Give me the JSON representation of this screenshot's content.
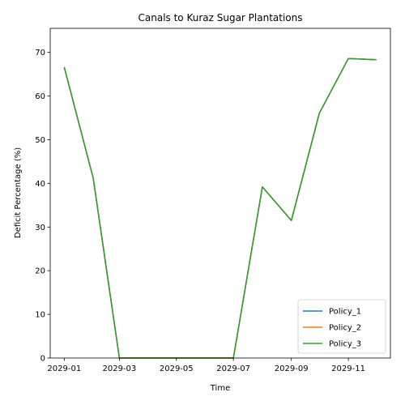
{
  "chart_data": {
    "type": "line",
    "title": "Canals to Kuraz Sugar Plantations",
    "xlabel": "Time",
    "ylabel": "Deficit Percentage (%)",
    "x": [
      "2029-01-01",
      "2029-02-01",
      "2029-03-01",
      "2029-04-01",
      "2029-05-01",
      "2029-06-01",
      "2029-07-01",
      "2029-08-01",
      "2029-09-01",
      "2029-10-01",
      "2029-11-01",
      "2029-12-01"
    ],
    "xlim": [
      "2028-12-17",
      "2029-12-16"
    ],
    "xticks": [
      "2029-01-01",
      "2029-03-01",
      "2029-05-01",
      "2029-07-01",
      "2029-09-01",
      "2029-11-01"
    ],
    "xtick_labels": [
      "2029-01",
      "2029-03",
      "2029-05",
      "2029-07",
      "2029-09",
      "2029-11"
    ],
    "ylim": [
      0,
      75.5
    ],
    "yticks": [
      0,
      10,
      20,
      30,
      40,
      50,
      60,
      70
    ],
    "series": [
      {
        "name": "Policy_1",
        "color": "#1f77b4",
        "values": [
          66.6,
          41.2,
          0,
          0,
          0,
          0,
          0,
          39.2,
          31.5,
          56.1,
          68.6,
          68.3
        ]
      },
      {
        "name": " Policy_2",
        "color": "#ff7f0e",
        "values": [
          66.6,
          41.2,
          0,
          0,
          0,
          0,
          0,
          39.2,
          31.5,
          56.1,
          68.6,
          68.3
        ]
      },
      {
        "name": " Policy_3",
        "color": "#2ca02c",
        "values": [
          66.6,
          41.2,
          0,
          0,
          0,
          0,
          0,
          39.2,
          31.5,
          56.1,
          68.6,
          68.3
        ]
      }
    ],
    "legend": {
      "placement": "lower-right"
    },
    "grid": false
  }
}
